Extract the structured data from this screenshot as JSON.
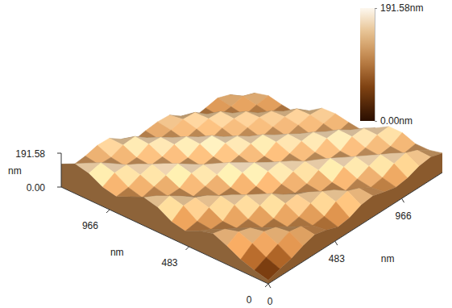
{
  "chart_data": {
    "type": "surface",
    "x_label": "nm",
    "y_label": "nm",
    "z_label": "nm",
    "x": [
      0,
      84,
      168,
      252,
      336,
      420,
      504,
      588,
      672,
      756,
      840,
      924,
      1008,
      1092,
      1176,
      1260
    ],
    "y": [
      0,
      84,
      168,
      252,
      336,
      420,
      504,
      588,
      672,
      756,
      840,
      924,
      1008,
      1092,
      1176,
      1260
    ],
    "z": [
      [
        20,
        40,
        65,
        105,
        138,
        118,
        80,
        96,
        140,
        160,
        128,
        92,
        110,
        150,
        168,
        130
      ],
      [
        42,
        72,
        115,
        146,
        125,
        88,
        98,
        150,
        170,
        135,
        90,
        112,
        158,
        180,
        142,
        96
      ],
      [
        60,
        105,
        142,
        128,
        92,
        96,
        138,
        160,
        134,
        100,
        118,
        150,
        172,
        145,
        104,
        118
      ],
      [
        90,
        135,
        126,
        90,
        104,
        150,
        168,
        136,
        98,
        110,
        148,
        178,
        146,
        102,
        116,
        150
      ],
      [
        110,
        124,
        88,
        102,
        142,
        170,
        138,
        100,
        120,
        160,
        182,
        150,
        106,
        118,
        156,
        162
      ],
      [
        95,
        88,
        104,
        148,
        172,
        136,
        92,
        110,
        150,
        176,
        146,
        104,
        124,
        164,
        175,
        128
      ],
      [
        70,
        98,
        140,
        160,
        128,
        90,
        112,
        158,
        184,
        148,
        102,
        118,
        162,
        172,
        138,
        90
      ],
      [
        80,
        140,
        168,
        134,
        98,
        118,
        160,
        180,
        150,
        104,
        122,
        164,
        176,
        140,
        100,
        118
      ],
      [
        110,
        160,
        136,
        96,
        112,
        152,
        178,
        145,
        102,
        126,
        166,
        180,
        142,
        98,
        122,
        140
      ],
      [
        120,
        134,
        92,
        110,
        150,
        172,
        146,
        98,
        116,
        158,
        174,
        140,
        96,
        128,
        154,
        150
      ],
      [
        100,
        98,
        118,
        158,
        180,
        144,
        104,
        124,
        162,
        176,
        138,
        100,
        130,
        156,
        164,
        115
      ],
      [
        85,
        112,
        150,
        178,
        146,
        106,
        122,
        158,
        172,
        140,
        98,
        128,
        152,
        166,
        124,
        78
      ],
      [
        95,
        150,
        176,
        144,
        104,
        118,
        164,
        174,
        138,
        100,
        126,
        154,
        162,
        126,
        86,
        104
      ],
      [
        120,
        170,
        142,
        106,
        124,
        162,
        176,
        140,
        96,
        128,
        150,
        158,
        122,
        84,
        108,
        132
      ],
      [
        130,
        144,
        102,
        118,
        158,
        172,
        138,
        98,
        126,
        152,
        162,
        124,
        88,
        112,
        138,
        122
      ],
      [
        110,
        104,
        116,
        156,
        168,
        136,
        100,
        122,
        148,
        156,
        118,
        84,
        106,
        134,
        126,
        80
      ]
    ],
    "xlim": [
      0,
      1260
    ],
    "xticks": [
      0,
      483,
      966
    ],
    "ylim": [
      0,
      1260
    ],
    "yticks": [
      0,
      483,
      966
    ],
    "zlim": [
      0,
      191.58
    ],
    "zticks": [
      {
        "value": 0,
        "label": "0.00"
      },
      191.58
    ],
    "colorbar": {
      "range": [
        0,
        191.58
      ],
      "ticks": [
        {
          "value": 0,
          "label": "0.00nm"
        },
        {
          "value": 191.58,
          "label": "191.58nm"
        }
      ]
    }
  }
}
